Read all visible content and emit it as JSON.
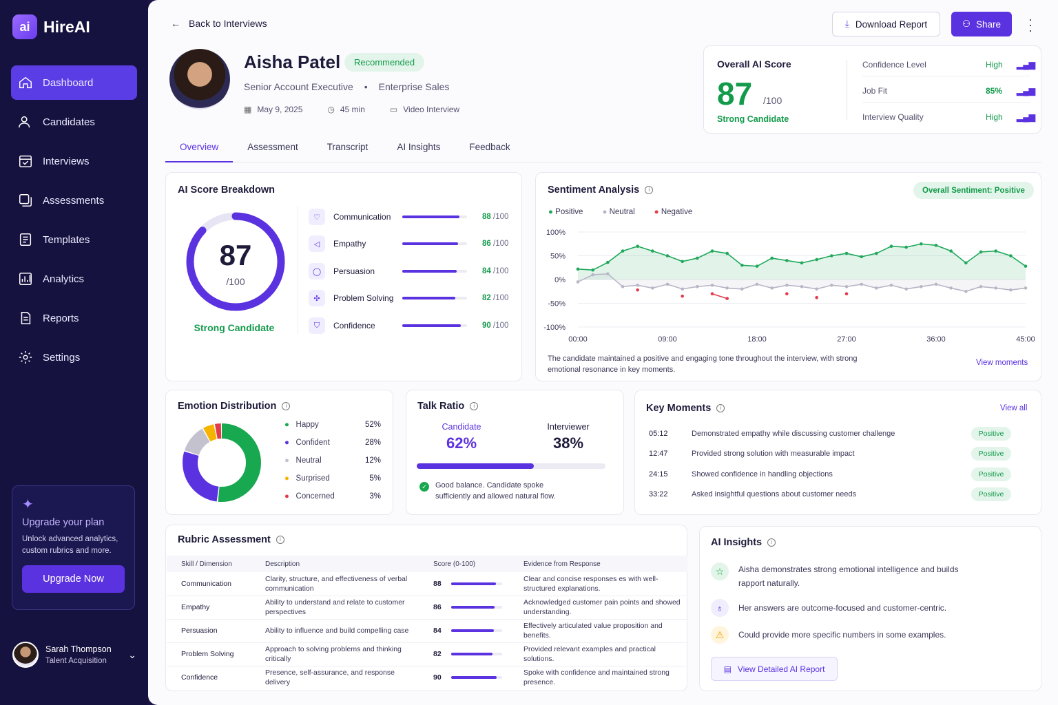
{
  "app": {
    "name": "HireAI",
    "logo_mark": "ai"
  },
  "sidebar": {
    "items": [
      {
        "label": "Dashboard",
        "icon": "home-icon",
        "active": true
      },
      {
        "label": "Candidates",
        "icon": "users-icon"
      },
      {
        "label": "Interviews",
        "icon": "calendar-check-icon"
      },
      {
        "label": "Assessments",
        "icon": "copy-icon"
      },
      {
        "label": "Templates",
        "icon": "template-icon"
      },
      {
        "label": "Analytics",
        "icon": "analytics-icon"
      },
      {
        "label": "Reports",
        "icon": "report-icon"
      },
      {
        "label": "Settings",
        "icon": "gear-icon"
      }
    ],
    "upgrade": {
      "title": "Upgrade your plan",
      "desc": "Unlock advanced analytics, custom rubrics and more.",
      "button": "Upgrade Now"
    },
    "user": {
      "name": "Sarah Thompson",
      "role": "Talent Acquisition"
    }
  },
  "header": {
    "back": "Back to Interviews",
    "download": "Download Report",
    "share": "Share"
  },
  "candidate": {
    "name": "Aisha Patel",
    "badge": "Recommended",
    "title": "Senior Account Executive",
    "dept": "Enterprise Sales",
    "date": "May 9, 2025",
    "duration": "45 min",
    "type": "Video Interview"
  },
  "overall": {
    "label": "Overall AI Score",
    "score": "87",
    "out_of": "/100",
    "verdict": "Strong Candidate",
    "metrics": [
      {
        "label": "Confidence Level",
        "value": "High"
      },
      {
        "label": "Job Fit",
        "value": "85%"
      },
      {
        "label": "Interview Quality",
        "value": "High"
      }
    ]
  },
  "tabs": [
    "Overview",
    "Assessment",
    "Transcript",
    "AI Insights",
    "Feedback"
  ],
  "score_breakdown": {
    "title": "AI Score Breakdown",
    "score": "87",
    "out_of": "/100",
    "score_fraction": 0.87,
    "verdict": "Strong Candidate",
    "per": "/100",
    "items": [
      {
        "label": "Communication",
        "value": "88",
        "frac": 0.88
      },
      {
        "label": "Empathy",
        "value": "86",
        "frac": 0.86
      },
      {
        "label": "Persuasion",
        "value": "84",
        "frac": 0.84
      },
      {
        "label": "Problem Solving",
        "value": "82",
        "frac": 0.82
      },
      {
        "label": "Confidence",
        "value": "90",
        "frac": 0.9
      }
    ]
  },
  "sentiment": {
    "title": "Sentiment Analysis",
    "badge": "Overall Sentiment: Positive",
    "legend": [
      "Positive",
      "Neutral",
      "Negative"
    ],
    "summary": "The candidate maintained a positive and engaging tone throughout the interview, with strong emotional resonance in key moments.",
    "link": "View moments",
    "yticks": [
      "100%",
      "50%",
      "0%",
      "-50%",
      "-100%"
    ],
    "xticks": [
      "00:00",
      "09:00",
      "18:00",
      "27:00",
      "36:00",
      "45:00"
    ]
  },
  "chart_data": {
    "type": "line",
    "title": "Sentiment Analysis",
    "xlabel": "",
    "ylabel": "",
    "xlim": [
      0,
      45
    ],
    "ylim": [
      -100,
      100
    ],
    "x_unit": "minutes",
    "x": [
      0,
      1.5,
      3,
      4.5,
      6,
      7.5,
      9,
      10.5,
      12,
      13.5,
      15,
      16.5,
      18,
      19.5,
      21,
      22.5,
      24,
      25.5,
      27,
      28.5,
      30,
      31.5,
      33,
      34.5,
      36,
      37.5,
      39,
      40.5,
      42,
      43.5,
      45
    ],
    "series": [
      {
        "name": "Positive",
        "color": "#1fa85a",
        "values": [
          22,
          20,
          36,
          60,
          70,
          60,
          50,
          38,
          45,
          60,
          55,
          30,
          28,
          45,
          40,
          35,
          42,
          50,
          55,
          48,
          55,
          70,
          68,
          75,
          72,
          60,
          35,
          58,
          60,
          50,
          28
        ]
      },
      {
        "name": "Neutral",
        "color": "#b8b6c6",
        "values": [
          -5,
          10,
          12,
          -15,
          -12,
          -18,
          -10,
          -20,
          -15,
          -12,
          -18,
          -20,
          -10,
          -18,
          -12,
          -15,
          -20,
          -12,
          -15,
          -10,
          -18,
          -12,
          -20,
          -15,
          -10,
          -18,
          -25,
          -15,
          -18,
          -22,
          -18
        ]
      },
      {
        "name": "Negative",
        "color": "#e23b4a",
        "values": [
          null,
          null,
          null,
          null,
          -22,
          null,
          null,
          -35,
          null,
          -30,
          -40,
          null,
          null,
          null,
          -30,
          null,
          -38,
          null,
          -30,
          null,
          null,
          null,
          null,
          null,
          null,
          null,
          null,
          null,
          null,
          null,
          null
        ]
      }
    ]
  },
  "emotion": {
    "title": "Emotion Distribution",
    "items": [
      {
        "label": "Happy",
        "value": "52%",
        "frac": 0.52,
        "color": "#18a84f"
      },
      {
        "label": "Confident",
        "value": "28%",
        "frac": 0.28,
        "color": "#5b32e0"
      },
      {
        "label": "Neutral",
        "value": "12%",
        "frac": 0.12,
        "color": "#c4c2cf"
      },
      {
        "label": "Surprised",
        "value": "5%",
        "frac": 0.05,
        "color": "#f5b400"
      },
      {
        "label": "Concerned",
        "value": "3%",
        "frac": 0.03,
        "color": "#e23b4a"
      }
    ]
  },
  "talk": {
    "title": "Talk Ratio",
    "candidate_label": "Candidate",
    "candidate_value": "62%",
    "candidate_frac": 0.62,
    "interviewer_label": "Interviewer",
    "interviewer_value": "38%",
    "note": "Good balance. Candidate spoke sufficiently and allowed natural flow."
  },
  "moments": {
    "title": "Key Moments",
    "link": "View all",
    "items": [
      {
        "time": "05:12",
        "text": "Demonstrated empathy while discussing customer challenge",
        "tag": "Positive"
      },
      {
        "time": "12:47",
        "text": "Provided strong solution with measurable impact",
        "tag": "Positive"
      },
      {
        "time": "24:15",
        "text": "Showed confidence in handling objections",
        "tag": "Positive"
      },
      {
        "time": "33:22",
        "text": "Asked insightful questions about customer needs",
        "tag": "Positive"
      }
    ]
  },
  "rubric": {
    "title": "Rubric Assessment",
    "headers": [
      "Skill / Dimension",
      "Description",
      "Score (0-100)",
      "Evidence from Response"
    ],
    "rows": [
      {
        "skill": "Communication",
        "desc": "Clarity, structure, and effectiveness of verbal communication",
        "score": "88",
        "frac": 0.88,
        "evidence": "Clear and concise responses es with well-structured explanations."
      },
      {
        "skill": "Empathy",
        "desc": "Ability to understand and relate to customer perspectives",
        "score": "86",
        "frac": 0.86,
        "evidence": "Acknowledged customer pain points and showed understanding."
      },
      {
        "skill": "Persuasion",
        "desc": "Ability to influence and build compelling case",
        "score": "84",
        "frac": 0.84,
        "evidence": "Effectively articulated value proposition and benefits."
      },
      {
        "skill": "Problem Solving",
        "desc": "Approach to solving problems and thinking critically",
        "score": "82",
        "frac": 0.82,
        "evidence": "Provided relevant examples and practical solutions."
      },
      {
        "skill": "Confidence",
        "desc": "Presence, self-assurance, and response delivery",
        "score": "90",
        "frac": 0.9,
        "evidence": "Spoke with confidence and maintained strong presence."
      }
    ]
  },
  "insights": {
    "title": "AI Insights",
    "items": [
      {
        "text": "Aisha demonstrates strong emotional intelligence and builds rapport naturally.",
        "icon": "star-icon"
      },
      {
        "text": "Her answers are outcome-focused and customer-centric.",
        "icon": "lightbulb-icon"
      },
      {
        "text": "Could provide more specific numbers in some examples.",
        "icon": "warning-icon"
      }
    ],
    "button": "View Detailed AI Report"
  }
}
